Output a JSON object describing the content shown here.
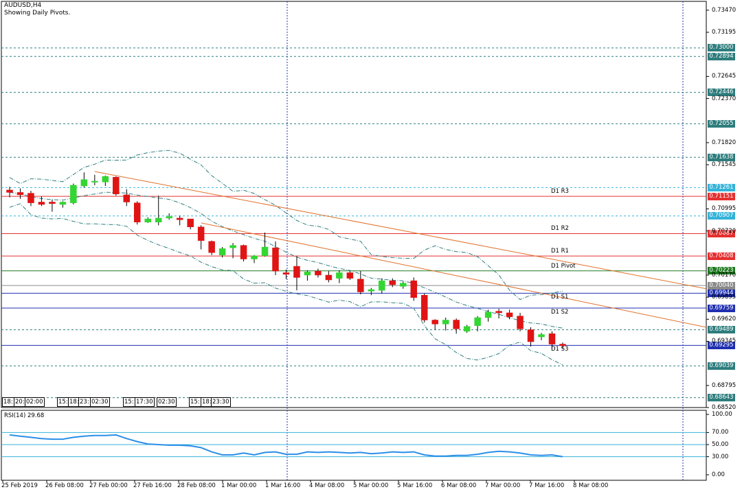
{
  "header": {
    "symbol": "AUDUSD,H4",
    "subtitle": "Showing Daily Pivots."
  },
  "price_axis": {
    "ticks": [
      "0.73470",
      "0.73195",
      "0.72645",
      "0.72370",
      "0.71820",
      "0.71545",
      "0.70995",
      "0.70720",
      "0.70170",
      "0.69895",
      "0.69620",
      "0.69345",
      "0.68795",
      "0.68520"
    ],
    "tick_values": [
      0.7347,
      0.73195,
      0.72645,
      0.7237,
      0.7182,
      0.71545,
      0.70995,
      0.7072,
      0.7017,
      0.69895,
      0.6962,
      0.69345,
      0.68795,
      0.6852
    ],
    "range": [
      0.6852,
      0.7358
    ]
  },
  "price_badges": [
    {
      "label": "0.73000",
      "value": 0.73,
      "color": "#2e7d7d",
      "line": "dotted"
    },
    {
      "label": "0.72894",
      "value": 0.72894,
      "color": "#2e7d7d",
      "line": "dotted"
    },
    {
      "label": "0.72446",
      "value": 0.72446,
      "color": "#2e7d7d",
      "line": "dotted"
    },
    {
      "label": "0.72055",
      "value": 0.72055,
      "color": "#2e7d7d",
      "line": "dotted"
    },
    {
      "label": "0.71638",
      "value": 0.71638,
      "color": "#2e7d7d",
      "line": "dotted"
    },
    {
      "label": "0.71261",
      "value": 0.71261,
      "color": "#36b3d9",
      "line": "dotted"
    },
    {
      "label": "0.71151",
      "value": 0.71151,
      "color": "#e53030",
      "line": "solid"
    },
    {
      "label": "0.70907",
      "value": 0.70907,
      "color": "#36b3d9",
      "line": "dotted"
    },
    {
      "label": "0.70687",
      "value": 0.70687,
      "color": "#e53030",
      "line": "solid"
    },
    {
      "label": "0.70408",
      "value": 0.70408,
      "color": "#e53030",
      "line": "solid"
    },
    {
      "label": "0.70223",
      "value": 0.70223,
      "color": "#1f7a1f",
      "line": "solid"
    },
    {
      "label": "0.70040",
      "value": 0.7004,
      "color": "#8a8a8a",
      "line": "solid"
    },
    {
      "label": "0.69944",
      "value": 0.69944,
      "color": "#1f2fb0",
      "line": "solid"
    },
    {
      "label": "0.69759",
      "value": 0.69759,
      "color": "#1f2fb0",
      "line": "solid"
    },
    {
      "label": "0.69489",
      "value": 0.69489,
      "color": "#2e7d7d",
      "line": "dotted"
    },
    {
      "label": "0.69295",
      "value": 0.69295,
      "color": "#1f2fb0",
      "line": "solid"
    },
    {
      "label": "0.69039",
      "value": 0.69039,
      "color": "#2e7d7d",
      "line": "dotted"
    },
    {
      "label": "0.68643",
      "value": 0.68643,
      "color": "#2e7d7d",
      "line": "dotted"
    }
  ],
  "pivot_labels": [
    {
      "label": "D1 R3",
      "value": 0.71151
    },
    {
      "label": "D1 R2",
      "value": 0.70687
    },
    {
      "label": "D1 R1",
      "value": 0.70408
    },
    {
      "label": "D1 Pivot",
      "value": 0.70223
    },
    {
      "label": "D1 S1",
      "value": 0.69944
    },
    {
      "label": "D1 S2",
      "value": 0.69759
    },
    {
      "label": "D1 S3",
      "value": 0.69295
    }
  ],
  "time_axis": {
    "labels": [
      "25 Feb 2019",
      "26 Feb 08:00",
      "27 Feb 00:00",
      "27 Feb 16:00",
      "28 Feb 08:00",
      "1 Mar 00:00",
      "1 Mar 16:00",
      "4 Mar 08:00",
      "5 Mar 00:00",
      "5 Mar 16:00",
      "6 Mar 08:00",
      "7 Mar 00:00",
      "7 Mar 16:00",
      "8 Mar 08:00"
    ],
    "session_boxes": [
      "18:",
      "20:",
      "02:00",
      "15:",
      "18:",
      "23:",
      "02:30",
      "15:",
      "17:30",
      "02:30",
      "15:",
      "18:",
      "23:30"
    ]
  },
  "rsi": {
    "label": "RSI(14) 29.68",
    "ticks": [
      "100.00",
      "70.00",
      "50.00",
      "30.00",
      "0.00"
    ],
    "tick_values": [
      100,
      70,
      50,
      30,
      0
    ],
    "levels": [
      70,
      50,
      30
    ]
  },
  "chart_data": {
    "type": "candlestick",
    "symbol": "AUDUSD",
    "timeframe": "H4",
    "candles": [
      {
        "o": 0.7123,
        "h": 0.7127,
        "l": 0.7114,
        "c": 0.712
      },
      {
        "o": 0.712,
        "h": 0.7125,
        "l": 0.7112,
        "c": 0.7117
      },
      {
        "o": 0.7119,
        "h": 0.7122,
        "l": 0.7103,
        "c": 0.7107
      },
      {
        "o": 0.7108,
        "h": 0.7115,
        "l": 0.7103,
        "c": 0.7105
      },
      {
        "o": 0.7108,
        "h": 0.7111,
        "l": 0.7096,
        "c": 0.7106
      },
      {
        "o": 0.7105,
        "h": 0.7109,
        "l": 0.7101,
        "c": 0.7108
      },
      {
        "o": 0.7107,
        "h": 0.7131,
        "l": 0.7105,
        "c": 0.7129
      },
      {
        "o": 0.7128,
        "h": 0.7145,
        "l": 0.7126,
        "c": 0.7136
      },
      {
        "o": 0.7133,
        "h": 0.7142,
        "l": 0.7129,
        "c": 0.7134
      },
      {
        "o": 0.7133,
        "h": 0.7141,
        "l": 0.7128,
        "c": 0.714
      },
      {
        "o": 0.7139,
        "h": 0.714,
        "l": 0.7116,
        "c": 0.7118
      },
      {
        "o": 0.7117,
        "h": 0.7124,
        "l": 0.7103,
        "c": 0.7108
      },
      {
        "o": 0.7107,
        "h": 0.7109,
        "l": 0.708,
        "c": 0.7083
      },
      {
        "o": 0.7083,
        "h": 0.7089,
        "l": 0.7082,
        "c": 0.7087
      },
      {
        "o": 0.7083,
        "h": 0.7116,
        "l": 0.7079,
        "c": 0.7088
      },
      {
        "o": 0.7088,
        "h": 0.7094,
        "l": 0.7086,
        "c": 0.709
      },
      {
        "o": 0.7088,
        "h": 0.7091,
        "l": 0.7079,
        "c": 0.7086
      },
      {
        "o": 0.7087,
        "h": 0.7087,
        "l": 0.7074,
        "c": 0.7077
      },
      {
        "o": 0.7077,
        "h": 0.7079,
        "l": 0.7049,
        "c": 0.706
      },
      {
        "o": 0.7059,
        "h": 0.706,
        "l": 0.7042,
        "c": 0.7045
      },
      {
        "o": 0.7042,
        "h": 0.7052,
        "l": 0.7039,
        "c": 0.705
      },
      {
        "o": 0.7051,
        "h": 0.7057,
        "l": 0.7038,
        "c": 0.7054
      },
      {
        "o": 0.7054,
        "h": 0.7055,
        "l": 0.7034,
        "c": 0.7037
      },
      {
        "o": 0.7037,
        "h": 0.7042,
        "l": 0.7032,
        "c": 0.7041
      },
      {
        "o": 0.7041,
        "h": 0.707,
        "l": 0.704,
        "c": 0.7052
      },
      {
        "o": 0.7051,
        "h": 0.7059,
        "l": 0.7017,
        "c": 0.7022
      },
      {
        "o": 0.702,
        "h": 0.7024,
        "l": 0.7012,
        "c": 0.7018
      },
      {
        "o": 0.7028,
        "h": 0.7041,
        "l": 0.6998,
        "c": 0.7014
      },
      {
        "o": 0.7017,
        "h": 0.7023,
        "l": 0.701,
        "c": 0.7021
      },
      {
        "o": 0.7022,
        "h": 0.7025,
        "l": 0.7014,
        "c": 0.7017
      },
      {
        "o": 0.7017,
        "h": 0.7022,
        "l": 0.7008,
        "c": 0.7011
      },
      {
        "o": 0.7013,
        "h": 0.7023,
        "l": 0.7007,
        "c": 0.702
      },
      {
        "o": 0.702,
        "h": 0.7022,
        "l": 0.7011,
        "c": 0.7013
      },
      {
        "o": 0.7012,
        "h": 0.7022,
        "l": 0.6993,
        "c": 0.6996
      },
      {
        "o": 0.6997,
        "h": 0.7001,
        "l": 0.6992,
        "c": 0.6999
      },
      {
        "o": 0.6998,
        "h": 0.7013,
        "l": 0.6994,
        "c": 0.701
      },
      {
        "o": 0.701,
        "h": 0.7013,
        "l": 0.7002,
        "c": 0.7005
      },
      {
        "o": 0.7003,
        "h": 0.7009,
        "l": 0.7,
        "c": 0.7007
      },
      {
        "o": 0.701,
        "h": 0.7014,
        "l": 0.6985,
        "c": 0.6989
      },
      {
        "o": 0.6992,
        "h": 0.6994,
        "l": 0.6958,
        "c": 0.6961
      },
      {
        "o": 0.6961,
        "h": 0.6962,
        "l": 0.6949,
        "c": 0.6956
      },
      {
        "o": 0.6956,
        "h": 0.6964,
        "l": 0.6948,
        "c": 0.6961
      },
      {
        "o": 0.6961,
        "h": 0.6963,
        "l": 0.6944,
        "c": 0.695
      },
      {
        "o": 0.6947,
        "h": 0.6955,
        "l": 0.6945,
        "c": 0.6953
      },
      {
        "o": 0.6954,
        "h": 0.6966,
        "l": 0.6947,
        "c": 0.6964
      },
      {
        "o": 0.6964,
        "h": 0.6974,
        "l": 0.6959,
        "c": 0.6971
      },
      {
        "o": 0.6972,
        "h": 0.6975,
        "l": 0.6963,
        "c": 0.697
      },
      {
        "o": 0.697,
        "h": 0.6974,
        "l": 0.6962,
        "c": 0.6965
      },
      {
        "o": 0.6966,
        "h": 0.697,
        "l": 0.6947,
        "c": 0.695
      },
      {
        "o": 0.6949,
        "h": 0.6952,
        "l": 0.6928,
        "c": 0.6934
      },
      {
        "o": 0.694,
        "h": 0.6945,
        "l": 0.6936,
        "c": 0.6943
      },
      {
        "o": 0.6944,
        "h": 0.6947,
        "l": 0.6925,
        "c": 0.6931
      },
      {
        "o": 0.6931,
        "h": 0.6933,
        "l": 0.6925,
        "c": 0.6929
      }
    ],
    "rsi_values": [
      66,
      64,
      62,
      60,
      59,
      59,
      62,
      64,
      65,
      65,
      66,
      60,
      55,
      51,
      50,
      49,
      49,
      48,
      45,
      38,
      33,
      33,
      36,
      33,
      37,
      38,
      34,
      34,
      38,
      37,
      38,
      37,
      36,
      37,
      35,
      36,
      38,
      37,
      38,
      33,
      31,
      31,
      32,
      32,
      34,
      37,
      39,
      38,
      36,
      33,
      32,
      33,
      30
    ]
  }
}
